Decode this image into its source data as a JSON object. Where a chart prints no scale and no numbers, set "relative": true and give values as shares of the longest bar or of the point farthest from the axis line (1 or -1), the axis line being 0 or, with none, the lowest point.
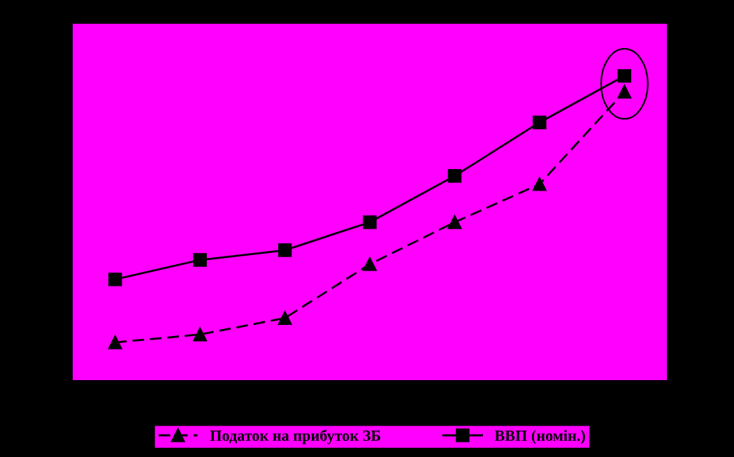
{
  "chart_data": {
    "type": "line",
    "relative": true,
    "categories": [
      null,
      null,
      null,
      null,
      null,
      null,
      null
    ],
    "series": [
      {
        "name": "Податок на прибуток ЗБ",
        "color": "#000000",
        "marker": "triangle",
        "line_style": "dashed",
        "values": [
          0.124,
          0.15,
          0.204,
          0.381,
          0.519,
          0.644,
          0.948
        ]
      },
      {
        "name": "ВВП (номін.)",
        "color": "#000000",
        "marker": "square",
        "line_style": "solid",
        "values": [
          0.331,
          0.395,
          0.427,
          0.519,
          0.671,
          0.847,
          1.0
        ]
      }
    ],
    "legend": "bottom",
    "grid": false
  }
}
